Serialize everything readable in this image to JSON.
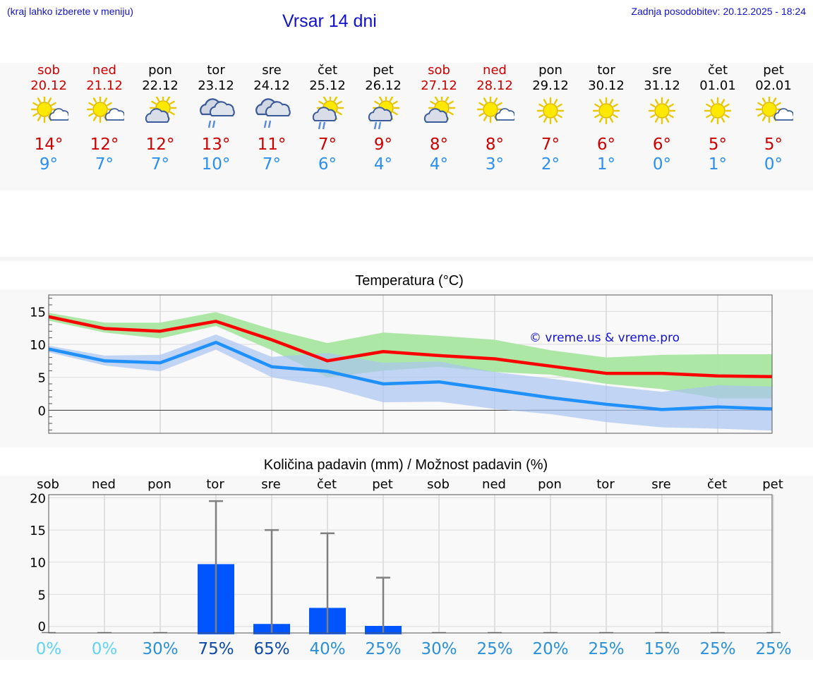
{
  "header": {
    "hint": "(kraj lahko izberete v meniju)",
    "title": "Vrsar 14 dni",
    "updated": "Zadnja posodobitev: 20.12.2025 - 18:24"
  },
  "days": [
    {
      "name": "sob",
      "date": "20.12",
      "weekend": true,
      "icon": "sun-cloud-icon",
      "tmax": "14°",
      "tmin": "9°"
    },
    {
      "name": "ned",
      "date": "21.12",
      "weekend": true,
      "icon": "sun-cloud-icon",
      "tmax": "12°",
      "tmin": "7°"
    },
    {
      "name": "pon",
      "date": "22.12",
      "weekend": false,
      "icon": "partly-cloudy-icon",
      "tmax": "12°",
      "tmin": "7°"
    },
    {
      "name": "tor",
      "date": "23.12",
      "weekend": false,
      "icon": "rain-cloud-icon",
      "tmax": "13°",
      "tmin": "10°"
    },
    {
      "name": "sre",
      "date": "24.12",
      "weekend": false,
      "icon": "rain-cloud-icon",
      "tmax": "11°",
      "tmin": "7°"
    },
    {
      "name": "čet",
      "date": "25.12",
      "weekend": false,
      "icon": "sun-rain-icon",
      "tmax": "7°",
      "tmin": "6°"
    },
    {
      "name": "pet",
      "date": "26.12",
      "weekend": false,
      "icon": "sun-rain-icon",
      "tmax": "9°",
      "tmin": "4°"
    },
    {
      "name": "sob",
      "date": "27.12",
      "weekend": true,
      "icon": "partly-cloudy-icon",
      "tmax": "8°",
      "tmin": "4°"
    },
    {
      "name": "ned",
      "date": "28.12",
      "weekend": true,
      "icon": "sun-cloud-icon",
      "tmax": "8°",
      "tmin": "3°"
    },
    {
      "name": "pon",
      "date": "29.12",
      "weekend": false,
      "icon": "sun-icon",
      "tmax": "7°",
      "tmin": "2°"
    },
    {
      "name": "tor",
      "date": "30.12",
      "weekend": false,
      "icon": "sun-icon",
      "tmax": "6°",
      "tmin": "1°"
    },
    {
      "name": "sre",
      "date": "31.12",
      "weekend": false,
      "icon": "sun-icon",
      "tmax": "6°",
      "tmin": "0°"
    },
    {
      "name": "čet",
      "date": "01.01",
      "weekend": false,
      "icon": "sun-icon",
      "tmax": "5°",
      "tmin": "1°"
    },
    {
      "name": "pet",
      "date": "02.01",
      "weekend": false,
      "icon": "sun-cloud-icon",
      "tmax": "5°",
      "tmin": "0°"
    }
  ],
  "colors": {
    "max": "#ff0000",
    "min": "#1e90ff",
    "maxBand": "#a8e6a0",
    "minBand": "#aac4f2",
    "bar": "#0055ff",
    "whisker": "#808080",
    "weekend": "#cc0000"
  },
  "chart_data": [
    {
      "type": "line",
      "title": "Temperatura (°C)",
      "watermark": "© vreme.us & vreme.pro",
      "ylim": [
        -3.5,
        17.5
      ],
      "yticks": [
        0,
        5,
        10,
        15
      ],
      "x": [
        0,
        1,
        2,
        3,
        4,
        5,
        6,
        7,
        8,
        9,
        10,
        11,
        12,
        13
      ],
      "series": [
        {
          "name": "max",
          "values": [
            14.2,
            12.4,
            12.0,
            13.5,
            10.7,
            7.5,
            8.9,
            8.3,
            7.8,
            6.7,
            5.6,
            5.6,
            5.2,
            5.1
          ],
          "band_low": [
            13.6,
            11.8,
            10.9,
            12.8,
            9.1,
            5.0,
            6.0,
            6.6,
            5.8,
            5.4,
            4.0,
            3.2,
            1.8,
            1.8
          ],
          "band_high": [
            14.8,
            13.3,
            13.3,
            14.9,
            12.3,
            10.2,
            11.8,
            11.3,
            10.7,
            9.1,
            8.0,
            8.4,
            8.5,
            8.5
          ]
        },
        {
          "name": "min",
          "values": [
            9.3,
            7.5,
            7.2,
            10.3,
            6.6,
            5.9,
            4.0,
            4.3,
            3.1,
            1.9,
            0.9,
            0.1,
            0.5,
            0.2
          ],
          "band_low": [
            8.8,
            6.8,
            5.9,
            9.2,
            5.0,
            3.5,
            1.2,
            1.3,
            0.2,
            -0.6,
            -1.8,
            -2.6,
            -2.8,
            -3.1
          ],
          "band_high": [
            9.8,
            8.3,
            8.4,
            11.5,
            8.1,
            8.7,
            7.2,
            7.4,
            5.8,
            4.8,
            3.7,
            2.8,
            3.8,
            3.6
          ]
        }
      ]
    },
    {
      "type": "bar",
      "title": "Količina padavin (mm) / Možnost padavin (%)",
      "categories": [
        "sob",
        "ned",
        "pon",
        "tor",
        "sre",
        "čet",
        "pet",
        "sob",
        "ned",
        "pon",
        "tor",
        "sre",
        "čet",
        "pet"
      ],
      "ylim": [
        -1,
        20.5
      ],
      "yticks": [
        0,
        5,
        10,
        15,
        20
      ],
      "values": [
        0,
        0,
        0,
        9.7,
        0.4,
        2.9,
        0.1,
        0,
        0,
        0,
        0,
        0,
        0,
        0
      ],
      "whisker_max": [
        0,
        0,
        0,
        19.5,
        15.0,
        14.5,
        7.6,
        0,
        0,
        0,
        0,
        0,
        0,
        0
      ],
      "probability": [
        "0%",
        "0%",
        "30%",
        "75%",
        "65%",
        "40%",
        "25%",
        "30%",
        "25%",
        "20%",
        "25%",
        "15%",
        "25%",
        "25%"
      ],
      "probability_values": [
        0,
        0,
        30,
        75,
        65,
        40,
        25,
        30,
        25,
        20,
        25,
        15,
        25,
        25
      ]
    }
  ]
}
